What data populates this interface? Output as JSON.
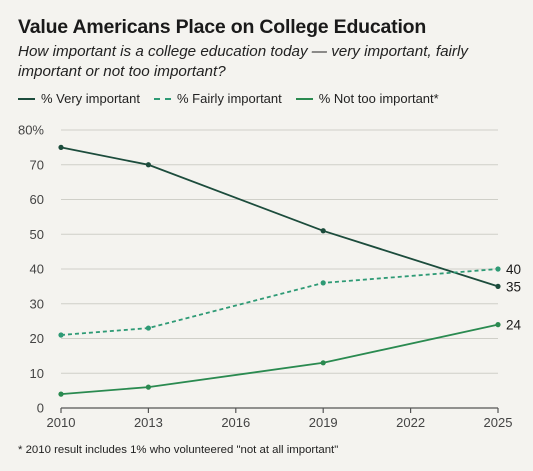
{
  "colors": {
    "background": "#f4f3ef",
    "very_important": "#1c4c3c",
    "fairly_important": "#2e9a75",
    "not_too_important": "#2a8a50",
    "grid": "#cfcfc8",
    "axis": "#555555"
  },
  "chart_data": {
    "type": "line",
    "title": "Value Americans Place on College Education",
    "subtitle": "How important is a college education today — very important, fairly important or not too important?",
    "footnote": "* 2010 result includes 1% who volunteered \"not at all important\"",
    "xlabel": "",
    "ylabel": "",
    "x_ticks": [
      "2010",
      "2013",
      "2016",
      "2019",
      "2022",
      "2025"
    ],
    "y_ticks": [
      "0",
      "10",
      "20",
      "30",
      "40",
      "50",
      "60",
      "70",
      "80%"
    ],
    "xlim": [
      2010,
      2025
    ],
    "ylim": [
      0,
      80
    ],
    "grid": true,
    "legend_position": "top-left",
    "series": [
      {
        "key": "very",
        "name": "% Very important",
        "style": "solid",
        "points": [
          [
            2010,
            75
          ],
          [
            2013,
            70
          ],
          [
            2019,
            51
          ],
          [
            2025,
            35
          ]
        ],
        "end_label": "35"
      },
      {
        "key": "fairly",
        "name": "% Fairly important",
        "style": "dashed",
        "points": [
          [
            2010,
            21
          ],
          [
            2013,
            23
          ],
          [
            2019,
            36
          ],
          [
            2025,
            40
          ]
        ],
        "end_label": "40"
      },
      {
        "key": "not",
        "name": "% Not too important*",
        "style": "solid",
        "points": [
          [
            2010,
            4
          ],
          [
            2013,
            6
          ],
          [
            2019,
            13
          ],
          [
            2025,
            24
          ]
        ],
        "end_label": "24"
      }
    ]
  }
}
